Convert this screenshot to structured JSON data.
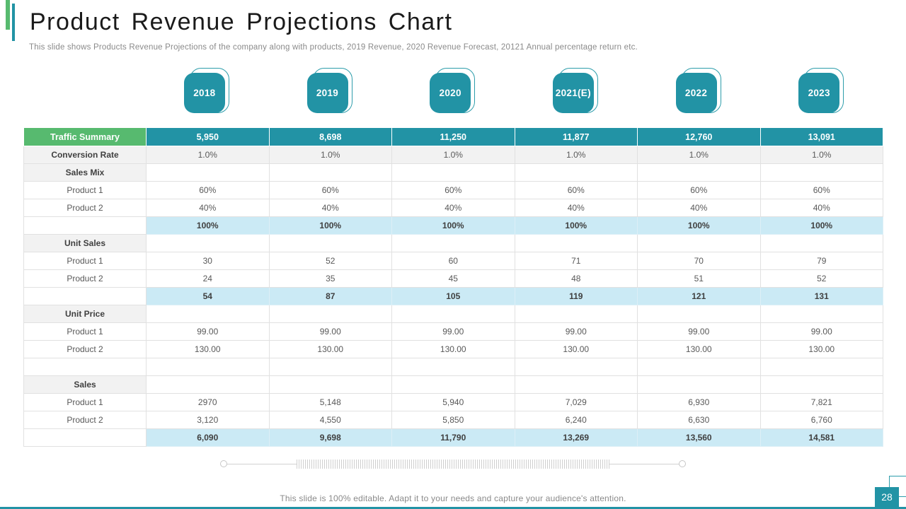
{
  "slide": {
    "title": "Product Revenue Projections Chart",
    "subtitle": "This slide shows Products Revenue Projections of the company along with products, 2019 Revenue,  2020 Revenue Forecast, 20121 Annual percentage return etc.",
    "footer": "This slide is 100% editable. Adapt it to your needs and capture your audience's attention.",
    "page_number": "28"
  },
  "colors": {
    "teal": "#2293A5",
    "green": "#57BA6F",
    "total_row_blue": "#CBEAF5",
    "section_row_gray": "#F2F2F2"
  },
  "years": [
    "2018",
    "2019",
    "2020",
    "2021(E)",
    "2022",
    "2023"
  ],
  "table": {
    "rows": [
      {
        "type": "header",
        "label": "Traffic Summary",
        "values": [
          "5,950",
          "8,698",
          "11,250",
          "11,877",
          "12,760",
          "13,091"
        ]
      },
      {
        "type": "gray",
        "label": "Conversion Rate",
        "values": [
          "1.0%",
          "1.0%",
          "1.0%",
          "1.0%",
          "1.0%",
          "1.0%"
        ]
      },
      {
        "type": "section",
        "label": "Sales Mix",
        "values": [
          "",
          "",
          "",
          "",
          "",
          ""
        ]
      },
      {
        "type": "item",
        "label": "Product 1",
        "values": [
          "60%",
          "60%",
          "60%",
          "60%",
          "60%",
          "60%"
        ]
      },
      {
        "type": "item",
        "label": "Product 2",
        "values": [
          "40%",
          "40%",
          "40%",
          "40%",
          "40%",
          "40%"
        ]
      },
      {
        "type": "total",
        "label": "",
        "values": [
          "100%",
          "100%",
          "100%",
          "100%",
          "100%",
          "100%"
        ]
      },
      {
        "type": "section",
        "label": "Unit Sales",
        "values": [
          "",
          "",
          "",
          "",
          "",
          ""
        ]
      },
      {
        "type": "item",
        "label": "Product 1",
        "values": [
          "30",
          "52",
          "60",
          "71",
          "70",
          "79"
        ]
      },
      {
        "type": "item",
        "label": "Product 2",
        "values": [
          "24",
          "35",
          "45",
          "48",
          "51",
          "52"
        ]
      },
      {
        "type": "total",
        "label": "",
        "values": [
          "54",
          "87",
          "105",
          "119",
          "121",
          "131"
        ]
      },
      {
        "type": "section",
        "label": "Unit Price",
        "values": [
          "",
          "",
          "",
          "",
          "",
          ""
        ]
      },
      {
        "type": "item",
        "label": "Product 1",
        "values": [
          "99.00",
          "99.00",
          "99.00",
          "99.00",
          "99.00",
          "99.00"
        ]
      },
      {
        "type": "item",
        "label": "Product 2",
        "values": [
          "130.00",
          "130.00",
          "130.00",
          "130.00",
          "130.00",
          "130.00"
        ]
      },
      {
        "type": "empty",
        "label": "",
        "values": [
          "",
          "",
          "",
          "",
          "",
          ""
        ]
      },
      {
        "type": "section",
        "label": "Sales",
        "values": [
          "",
          "",
          "",
          "",
          "",
          ""
        ]
      },
      {
        "type": "item",
        "label": "Product 1",
        "values": [
          "2970",
          "5,148",
          "5,940",
          "7,029",
          "6,930",
          "7,821"
        ]
      },
      {
        "type": "item",
        "label": "Product 2",
        "values": [
          "3,120",
          "4,550",
          "5,850",
          "6,240",
          "6,630",
          "6,760"
        ]
      },
      {
        "type": "total",
        "label": "",
        "values": [
          "6,090",
          "9,698",
          "11,790",
          "13,269",
          "13,560",
          "14,581"
        ]
      }
    ]
  }
}
